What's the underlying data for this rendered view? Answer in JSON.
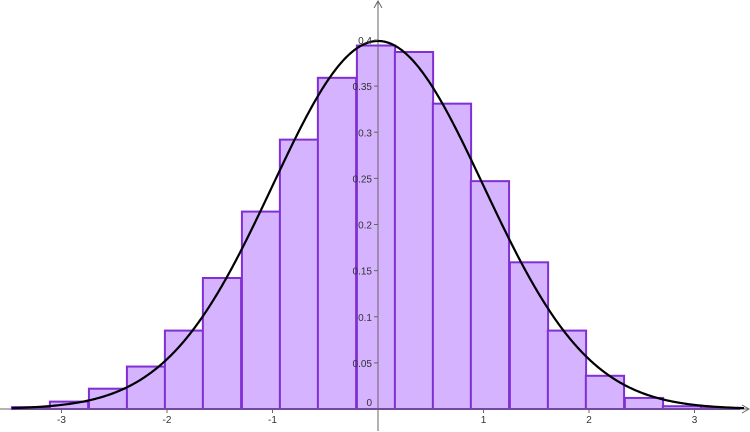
{
  "chart_data": {
    "type": "bar",
    "bin_left_edges": [
      -3.47,
      -3.11,
      -2.74,
      -2.38,
      -2.02,
      -1.66,
      -1.29,
      -0.93,
      -0.57,
      -0.2,
      0.16,
      0.52,
      0.88,
      1.25,
      1.61,
      1.97,
      2.34,
      2.7,
      3.06
    ],
    "bin_width": 0.3625,
    "values": [
      0.002,
      0.008,
      0.022,
      0.046,
      0.085,
      0.142,
      0.214,
      0.292,
      0.359,
      0.394,
      0.387,
      0.331,
      0.247,
      0.159,
      0.085,
      0.036,
      0.012,
      0.003,
      0.001
    ],
    "curve": {
      "kind": "normal_pdf",
      "mean": 0,
      "sd": 1,
      "color": "#000000"
    },
    "xlim": [
      -3.47,
      3.47
    ],
    "ylim": [
      0,
      0.43
    ],
    "x_ticks": [
      -3,
      -2,
      -1,
      0,
      1,
      2,
      3
    ],
    "x_tick_labels": [
      "-3",
      "-2",
      "-1",
      "0",
      "1",
      "2",
      "3"
    ],
    "y_ticks": [
      0.05,
      0.1,
      0.15,
      0.2,
      0.25,
      0.3,
      0.35,
      0.4
    ],
    "y_tick_labels": [
      "0.05",
      "0.1",
      "0.15",
      "0.2",
      "0.25",
      "0.3",
      "0.35",
      "0.4"
    ],
    "origin_label": "0",
    "title": "",
    "xlabel": "",
    "ylabel": "",
    "grid": false,
    "colors": {
      "bar_fill": "#d5b3ff",
      "bar_stroke": "#7f2fd4",
      "axis": "#666666",
      "text": "#333333"
    }
  }
}
